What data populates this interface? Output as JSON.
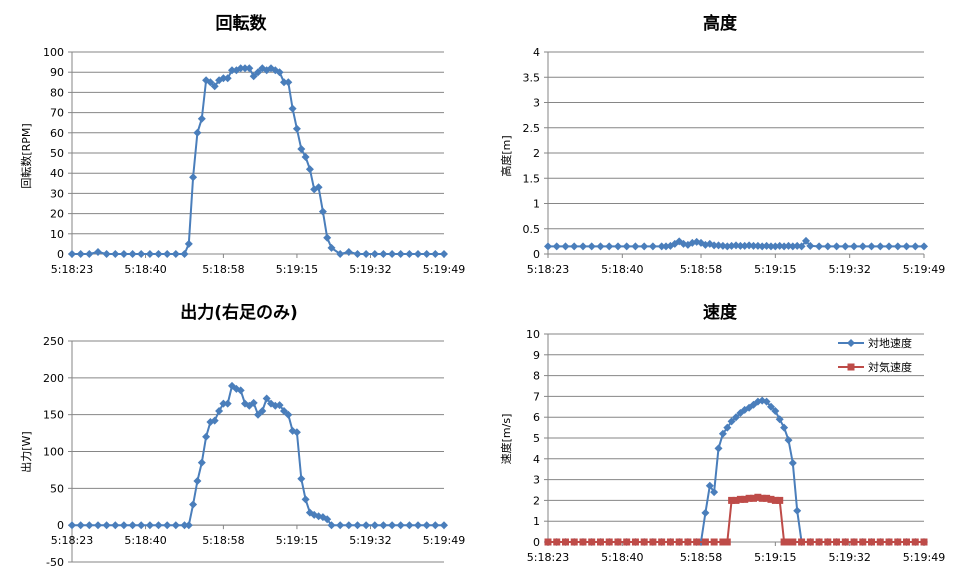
{
  "colors": {
    "series_blue": "#4a7ebb",
    "series_red": "#be4b48",
    "grid": "#868686"
  },
  "chart_data": [
    {
      "type": "line",
      "title": "回転数",
      "ylabel": "回転数[RPM]",
      "ylim": [
        0,
        100
      ],
      "yticks": [
        0,
        10,
        20,
        30,
        40,
        50,
        60,
        70,
        80,
        90,
        100
      ],
      "xlim": [
        "5:18:23",
        "5:19:49"
      ],
      "xticks": [
        "5:18:23",
        "5:18:40",
        "5:18:58",
        "5:19:15",
        "5:19:32",
        "5:19:49"
      ],
      "grid": true,
      "series": [
        {
          "marker": "diamond",
          "color": "#4a7ebb",
          "x": [
            "5:18:23",
            "5:18:25",
            "5:18:27",
            "5:18:29",
            "5:18:31",
            "5:18:33",
            "5:18:35",
            "5:18:37",
            "5:18:39",
            "5:18:41",
            "5:18:43",
            "5:18:45",
            "5:18:47",
            "5:18:49",
            "5:18:50",
            "5:18:51",
            "5:18:52",
            "5:18:53",
            "5:18:54",
            "5:18:55",
            "5:18:56",
            "5:18:57",
            "5:18:58",
            "5:18:59",
            "5:19:00",
            "5:19:01",
            "5:19:02",
            "5:19:03",
            "5:19:04",
            "5:19:05",
            "5:19:06",
            "5:19:07",
            "5:19:08",
            "5:19:09",
            "5:19:10",
            "5:19:11",
            "5:19:12",
            "5:19:13",
            "5:19:14",
            "5:19:15",
            "5:19:16",
            "5:19:17",
            "5:19:18",
            "5:19:19",
            "5:19:20",
            "5:19:21",
            "5:19:22",
            "5:19:23",
            "5:19:25",
            "5:19:27",
            "5:19:29",
            "5:19:31",
            "5:19:33",
            "5:19:35",
            "5:19:37",
            "5:19:39",
            "5:19:41",
            "5:19:43",
            "5:19:45",
            "5:19:47",
            "5:19:49"
          ],
          "y": [
            0,
            0,
            0,
            1,
            0,
            0,
            0,
            0,
            0,
            0,
            0,
            0,
            0,
            0,
            5,
            38,
            60,
            67,
            86,
            85,
            83,
            86,
            87,
            87,
            91,
            91,
            92,
            92,
            92,
            88,
            90,
            92,
            91,
            92,
            91,
            90,
            85,
            85,
            72,
            62,
            52,
            48,
            42,
            32,
            33,
            21,
            8,
            3,
            0,
            1,
            0,
            0,
            0,
            0,
            0,
            0,
            0,
            0,
            0,
            0,
            0
          ]
        }
      ]
    },
    {
      "type": "line",
      "title": "高度",
      "ylabel": "高度[m]",
      "ylim": [
        0,
        4
      ],
      "yticks": [
        0,
        0.5,
        1,
        1.5,
        2,
        2.5,
        3,
        3.5,
        4
      ],
      "xlim": [
        "5:18:23",
        "5:19:49"
      ],
      "xticks": [
        "5:18:23",
        "5:18:40",
        "5:18:58",
        "5:19:15",
        "5:19:32",
        "5:19:49"
      ],
      "grid": true,
      "series": [
        {
          "marker": "diamond",
          "color": "#4a7ebb",
          "x": [
            "5:18:23",
            "5:18:25",
            "5:18:27",
            "5:18:29",
            "5:18:31",
            "5:18:33",
            "5:18:35",
            "5:18:37",
            "5:18:39",
            "5:18:41",
            "5:18:43",
            "5:18:45",
            "5:18:47",
            "5:18:49",
            "5:18:50",
            "5:18:51",
            "5:18:52",
            "5:18:53",
            "5:18:54",
            "5:18:55",
            "5:18:56",
            "5:18:57",
            "5:18:58",
            "5:18:59",
            "5:19:00",
            "5:19:01",
            "5:19:02",
            "5:19:03",
            "5:19:04",
            "5:19:05",
            "5:19:06",
            "5:19:07",
            "5:19:08",
            "5:19:09",
            "5:19:10",
            "5:19:11",
            "5:19:12",
            "5:19:13",
            "5:19:14",
            "5:19:15",
            "5:19:16",
            "5:19:17",
            "5:19:18",
            "5:19:19",
            "5:19:20",
            "5:19:21",
            "5:19:22",
            "5:19:23",
            "5:19:25",
            "5:19:27",
            "5:19:29",
            "5:19:31",
            "5:19:33",
            "5:19:35",
            "5:19:37",
            "5:19:39",
            "5:19:41",
            "5:19:43",
            "5:19:45",
            "5:19:47",
            "5:19:49"
          ],
          "y": [
            0.15,
            0.15,
            0.15,
            0.15,
            0.15,
            0.15,
            0.15,
            0.15,
            0.15,
            0.15,
            0.15,
            0.15,
            0.15,
            0.15,
            0.15,
            0.16,
            0.2,
            0.25,
            0.2,
            0.18,
            0.22,
            0.24,
            0.22,
            0.18,
            0.2,
            0.17,
            0.17,
            0.16,
            0.15,
            0.16,
            0.17,
            0.16,
            0.16,
            0.17,
            0.16,
            0.16,
            0.15,
            0.16,
            0.15,
            0.15,
            0.16,
            0.15,
            0.16,
            0.15,
            0.16,
            0.15,
            0.26,
            0.16,
            0.15,
            0.15,
            0.15,
            0.15,
            0.15,
            0.15,
            0.15,
            0.15,
            0.15,
            0.15,
            0.15,
            0.15,
            0.15
          ]
        }
      ]
    },
    {
      "type": "line",
      "title": "出力(右足のみ)",
      "ylabel": "出力[W]",
      "ylim": [
        -50,
        250
      ],
      "yticks": [
        -50,
        0,
        50,
        100,
        150,
        200,
        250
      ],
      "xlim": [
        "5:18:23",
        "5:19:49"
      ],
      "xticks": [
        "5:18:23",
        "5:18:40",
        "5:18:58",
        "5:19:15",
        "5:19:32",
        "5:19:49"
      ],
      "grid": true,
      "series": [
        {
          "marker": "diamond",
          "color": "#4a7ebb",
          "x": [
            "5:18:23",
            "5:18:25",
            "5:18:27",
            "5:18:29",
            "5:18:31",
            "5:18:33",
            "5:18:35",
            "5:18:37",
            "5:18:39",
            "5:18:41",
            "5:18:43",
            "5:18:45",
            "5:18:47",
            "5:18:49",
            "5:18:50",
            "5:18:51",
            "5:18:52",
            "5:18:53",
            "5:18:54",
            "5:18:55",
            "5:18:56",
            "5:18:57",
            "5:18:58",
            "5:18:59",
            "5:19:00",
            "5:19:01",
            "5:19:02",
            "5:19:03",
            "5:19:04",
            "5:19:05",
            "5:19:06",
            "5:19:07",
            "5:19:08",
            "5:19:09",
            "5:19:10",
            "5:19:11",
            "5:19:12",
            "5:19:13",
            "5:19:14",
            "5:19:15",
            "5:19:16",
            "5:19:17",
            "5:19:18",
            "5:19:19",
            "5:19:20",
            "5:19:21",
            "5:19:22",
            "5:19:23",
            "5:19:25",
            "5:19:27",
            "5:19:29",
            "5:19:31",
            "5:19:33",
            "5:19:35",
            "5:19:37",
            "5:19:39",
            "5:19:41",
            "5:19:43",
            "5:19:45",
            "5:19:47",
            "5:19:49"
          ],
          "y": [
            0,
            0,
            0,
            0,
            0,
            0,
            0,
            0,
            0,
            0,
            0,
            0,
            0,
            0,
            0,
            28,
            60,
            85,
            120,
            140,
            142,
            155,
            165,
            165,
            189,
            185,
            183,
            165,
            162,
            166,
            150,
            155,
            172,
            165,
            162,
            163,
            155,
            150,
            128,
            126,
            63,
            35,
            17,
            14,
            12,
            11,
            8,
            0,
            0,
            0,
            0,
            0,
            0,
            0,
            0,
            0,
            0,
            0,
            0,
            0,
            0
          ]
        }
      ]
    },
    {
      "type": "line",
      "title": "速度",
      "ylabel": "速度[m/s]",
      "ylim": [
        0,
        10
      ],
      "yticks": [
        0,
        1,
        2,
        3,
        4,
        5,
        6,
        7,
        8,
        9,
        10
      ],
      "xlim": [
        "5:18:23",
        "5:19:49"
      ],
      "xticks": [
        "5:18:23",
        "5:18:40",
        "5:18:58",
        "5:19:15",
        "5:19:32",
        "5:19:49"
      ],
      "grid": true,
      "legend": "top-right",
      "series": [
        {
          "name": "対地速度",
          "marker": "diamond",
          "color": "#4a7ebb",
          "x": [
            "5:18:23",
            "5:18:25",
            "5:18:27",
            "5:18:29",
            "5:18:31",
            "5:18:33",
            "5:18:35",
            "5:18:37",
            "5:18:39",
            "5:18:41",
            "5:18:43",
            "5:18:45",
            "5:18:47",
            "5:18:49",
            "5:18:51",
            "5:18:53",
            "5:18:55",
            "5:18:57",
            "5:18:58",
            "5:18:59",
            "5:19:00",
            "5:19:01",
            "5:19:02",
            "5:19:03",
            "5:19:04",
            "5:19:05",
            "5:19:06",
            "5:19:07",
            "5:19:08",
            "5:19:09",
            "5:19:10",
            "5:19:11",
            "5:19:12",
            "5:19:13",
            "5:19:14",
            "5:19:15",
            "5:19:16",
            "5:19:17",
            "5:19:18",
            "5:19:19",
            "5:19:20",
            "5:19:21",
            "5:19:23",
            "5:19:25",
            "5:19:27",
            "5:19:29",
            "5:19:31",
            "5:19:33",
            "5:19:35",
            "5:19:37",
            "5:19:39",
            "5:19:41",
            "5:19:43",
            "5:19:45",
            "5:19:47",
            "5:19:49"
          ],
          "y": [
            0,
            0,
            0,
            0,
            0,
            0,
            0,
            0,
            0,
            0,
            0,
            0,
            0,
            0,
            0,
            0,
            0,
            0,
            0,
            1.4,
            2.7,
            2.4,
            4.5,
            5.2,
            5.5,
            5.8,
            6.0,
            6.2,
            6.35,
            6.45,
            6.6,
            6.75,
            6.8,
            6.75,
            6.5,
            6.3,
            5.9,
            5.5,
            4.9,
            3.8,
            1.5,
            0,
            0,
            0,
            0,
            0,
            0,
            0,
            0,
            0,
            0,
            0,
            0,
            0,
            0,
            0
          ]
        },
        {
          "name": "対気速度",
          "marker": "square",
          "color": "#be4b48",
          "x": [
            "5:18:23",
            "5:18:25",
            "5:18:27",
            "5:18:29",
            "5:18:31",
            "5:18:33",
            "5:18:35",
            "5:18:37",
            "5:18:39",
            "5:18:41",
            "5:18:43",
            "5:18:45",
            "5:18:47",
            "5:18:49",
            "5:18:51",
            "5:18:53",
            "5:18:55",
            "5:18:57",
            "5:18:59",
            "5:19:01",
            "5:19:03",
            "5:19:04",
            "5:19:05",
            "5:19:06",
            "5:19:07",
            "5:19:08",
            "5:19:09",
            "5:19:10",
            "5:19:11",
            "5:19:12",
            "5:19:13",
            "5:19:14",
            "5:19:15",
            "5:19:16",
            "5:19:17",
            "5:19:18",
            "5:19:19",
            "5:19:21",
            "5:19:23",
            "5:19:25",
            "5:19:27",
            "5:19:29",
            "5:19:31",
            "5:19:33",
            "5:19:35",
            "5:19:37",
            "5:19:39",
            "5:19:41",
            "5:19:43",
            "5:19:45",
            "5:19:47",
            "5:19:49"
          ],
          "y": [
            0,
            0,
            0,
            0,
            0,
            0,
            0,
            0,
            0,
            0,
            0,
            0,
            0,
            0,
            0,
            0,
            0,
            0,
            0,
            0,
            0,
            0,
            2.0,
            2.0,
            2.05,
            2.05,
            2.1,
            2.1,
            2.15,
            2.1,
            2.1,
            2.05,
            2.0,
            2.0,
            0,
            0,
            0,
            0,
            0,
            0,
            0,
            0,
            0,
            0,
            0,
            0,
            0,
            0,
            0,
            0,
            0,
            0
          ]
        }
      ]
    }
  ]
}
